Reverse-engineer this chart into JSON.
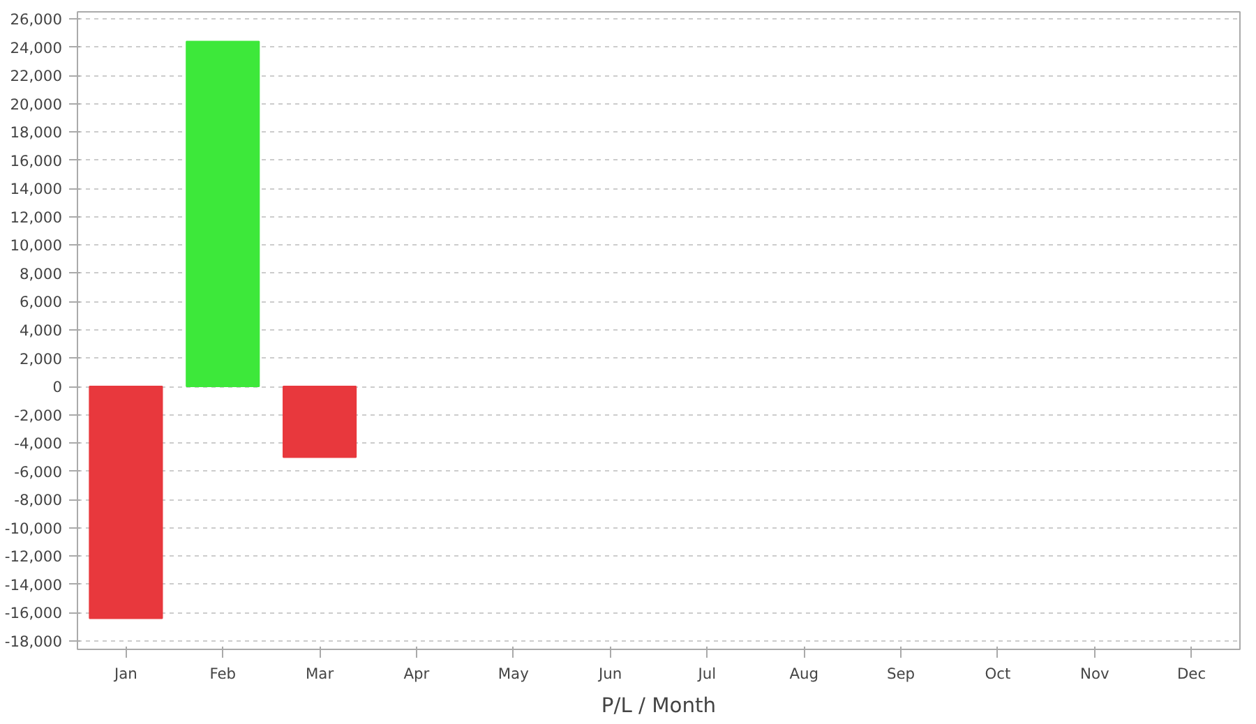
{
  "chart_data": {
    "type": "bar",
    "xlabel": "P/L / Month",
    "categories": [
      "Jan",
      "Feb",
      "Mar",
      "Apr",
      "May",
      "Jun",
      "Jul",
      "Aug",
      "Sep",
      "Oct",
      "Nov",
      "Dec"
    ],
    "values": [
      -16400,
      24400,
      -5000,
      null,
      null,
      null,
      null,
      null,
      null,
      null,
      null,
      null
    ],
    "colors": [
      "#e8383d",
      "#3de83a",
      "#e8383d",
      null,
      null,
      null,
      null,
      null,
      null,
      null,
      null,
      null
    ],
    "ylim": [
      -18600,
      26500
    ],
    "yticks": [
      {
        "value": -18000,
        "label": "-18,000"
      },
      {
        "value": -16000,
        "label": "-16,000"
      },
      {
        "value": -14000,
        "label": "-14,000"
      },
      {
        "value": -12000,
        "label": "-12,000"
      },
      {
        "value": -10000,
        "label": "-10,000"
      },
      {
        "value": -8000,
        "label": "-8,000"
      },
      {
        "value": -6000,
        "label": "-6,000"
      },
      {
        "value": -4000,
        "label": "-4,000"
      },
      {
        "value": -2000,
        "label": "-2,000"
      },
      0,
      {
        "value": 2000,
        "label": "2,000"
      },
      {
        "value": 4000,
        "label": "4,000"
      },
      {
        "value": 6000,
        "label": "6,000"
      },
      {
        "value": 8000,
        "label": "8,000"
      },
      {
        "value": 10000,
        "label": "10,000"
      },
      {
        "value": 12000,
        "label": "12,000"
      },
      {
        "value": 14000,
        "label": "14,000"
      },
      {
        "value": 16000,
        "label": "16,000"
      },
      {
        "value": 18000,
        "label": "18,000"
      },
      {
        "value": 20000,
        "label": "20,000"
      },
      {
        "value": 22000,
        "label": "22,000"
      },
      {
        "value": 24000,
        "label": "24,000"
      },
      {
        "value": 26000,
        "label": "26,000"
      }
    ],
    "grid": "y"
  }
}
